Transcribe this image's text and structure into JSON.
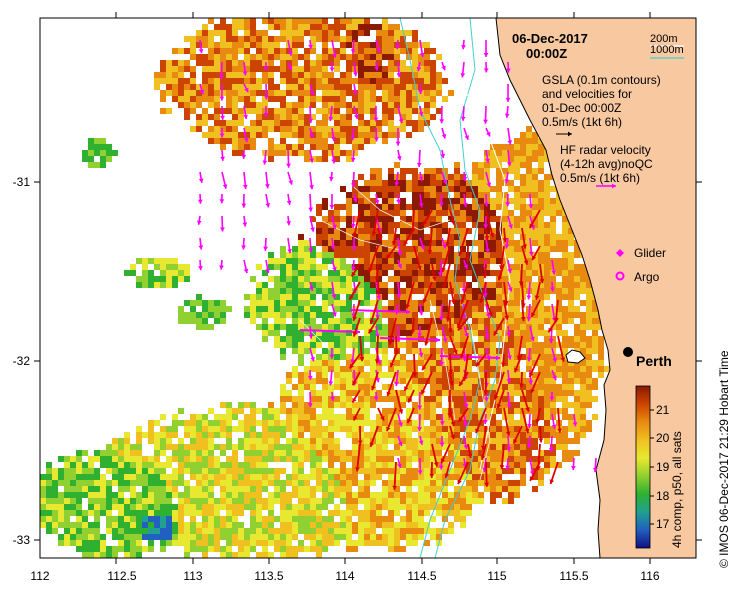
{
  "header": {
    "date": "06-Dec-2017",
    "time": "00:00Z"
  },
  "depth_legend": {
    "shallow": "200m",
    "deep": "1000m",
    "deep_color": "#40d0d0",
    "shallow_color": "#ffffff"
  },
  "gsla_legend": {
    "line1": "GSLA (0.1m contours)",
    "line2": "and velocities for",
    "line3": "01-Dec 00:00Z",
    "scale": "0.5m/s (1kt 6h)",
    "arrow_color": "#000000"
  },
  "hf_legend": {
    "line1": "HF radar velocity",
    "line2": "(4-12h avg)noQC",
    "scale": "0.5m/s (1kt 6h)",
    "arrow_color": "#ff00ff"
  },
  "markers": {
    "glider_label": "Glider",
    "argo_label": "Argo",
    "city_label": "Perth",
    "marker_color": "#ff00ff"
  },
  "axes": {
    "x_ticks": [
      "112",
      "112.5",
      "113",
      "113.5",
      "114",
      "114.5",
      "115",
      "115.5",
      "116"
    ],
    "y_ticks": [
      "-31",
      "-32",
      "-33"
    ]
  },
  "colorbar": {
    "ticks": [
      "21",
      "20",
      "19",
      "18",
      "17"
    ],
    "label": "4h comp, p50, all sats",
    "colors": [
      "#8b1a00",
      "#cc4400",
      "#e88a10",
      "#f0c020",
      "#e8e830",
      "#90d030",
      "#30b030",
      "#20a090",
      "#2060c0",
      "#101080"
    ]
  },
  "credit": "© IMOS 06-Dec-2017 21:29 Hobart Time",
  "colors": {
    "land": "#f8c8a0",
    "coast": "#000000",
    "gsla_vector": "#e00000",
    "hf_vector": "#ff00ff"
  }
}
